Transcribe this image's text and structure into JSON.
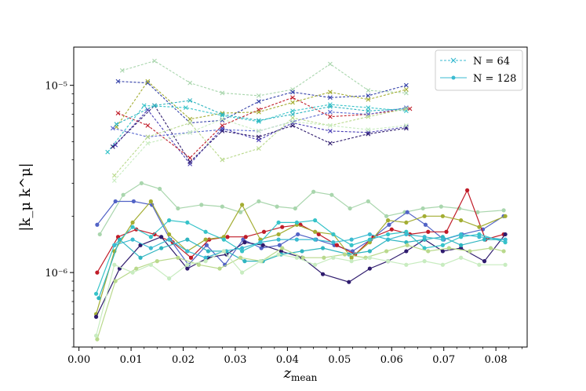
{
  "chart_data": {
    "type": "line",
    "xlabel": "z",
    "xlabel_sub": "mean",
    "ylabel": "|k_μ k^μ|",
    "xlim": [
      -0.001,
      0.086
    ],
    "ylim": [
      4e-07,
      1.6e-05
    ],
    "yscale": "log",
    "x_ticks": [
      0.0,
      0.01,
      0.02,
      0.03,
      0.04,
      0.05,
      0.06,
      0.07,
      0.08
    ],
    "x_tick_labels": [
      "0.00",
      "0.01",
      "0.02",
      "0.03",
      "0.04",
      "0.05",
      "0.06",
      "0.07",
      "0.08"
    ],
    "y_ticks": [
      1e-06,
      1e-05
    ],
    "y_tick_labels": [
      "10⁻⁶",
      "10⁻⁵"
    ],
    "legend": {
      "position": "top-right",
      "entries": [
        {
          "label": "N = 64",
          "color": "#3bbbd1",
          "linestyle": "dashed",
          "marker": "x"
        },
        {
          "label": "N = 128",
          "color": "#3bbbd1",
          "linestyle": "solid",
          "marker": "o"
        }
      ]
    },
    "series_n64": [
      {
        "color": "#a9d6ad",
        "x": [
          0.0083,
          0.0145,
          0.0213,
          0.0275,
          0.0345,
          0.041,
          0.0482,
          0.0555,
          0.0628
        ],
        "y": [
          1.2e-05,
          1.35e-05,
          1.03e-05,
          9.1e-06,
          8.8e-06,
          9.5e-06,
          1.3e-05,
          9.4e-06,
          9.1e-06
        ]
      },
      {
        "color": "#3340a8",
        "x": [
          0.0075,
          0.0132,
          0.0213,
          0.0275,
          0.0345,
          0.041,
          0.0482,
          0.0555,
          0.0628
        ],
        "y": [
          1.05e-05,
          1.03e-05,
          6.3e-06,
          6.5e-06,
          8.2e-06,
          9.2e-06,
          8.6e-06,
          8.8e-06,
          1e-05
        ]
      },
      {
        "color": "#4a3fb5",
        "x": [
          0.007,
          0.0132,
          0.0213,
          0.0275,
          0.0345,
          0.041,
          0.0482,
          0.0555,
          0.0628
        ],
        "y": [
          4.8e-06,
          7.4e-06,
          3.8e-06,
          5.9e-06,
          5.1e-06,
          6.3e-06,
          5.7e-06,
          5.6e-06,
          6e-06
        ]
      },
      {
        "color": "#c01c28",
        "x": [
          0.0075,
          0.0132,
          0.0213,
          0.0275,
          0.0345,
          0.041,
          0.0482,
          0.0555,
          0.0635
        ],
        "y": [
          7.1e-06,
          6.1e-06,
          4.1e-06,
          6.1e-06,
          7.4e-06,
          8.6e-06,
          6.8e-06,
          7e-06,
          7.5e-06
        ]
      },
      {
        "color": "#a3ad32",
        "x": [
          0.0072,
          0.0132,
          0.0213,
          0.0275,
          0.0345,
          0.041,
          0.0482,
          0.0555,
          0.0628
        ],
        "y": [
          6e-06,
          1.05e-05,
          6.6e-06,
          7.1e-06,
          7.2e-06,
          8.1e-06,
          9.2e-06,
          8.4e-06,
          9.5e-06
        ]
      },
      {
        "color": "#36c3c9",
        "x": [
          0.0055,
          0.0125,
          0.0205,
          0.0275,
          0.0345,
          0.041,
          0.0482,
          0.0555,
          0.0628
        ],
        "y": [
          4.4e-06,
          7.8e-06,
          7.6e-06,
          6.9e-06,
          6.4e-06,
          7.3e-06,
          7.9e-06,
          7.6e-06,
          7.3e-06
        ]
      },
      {
        "color": "#5b6bd0",
        "x": [
          0.0065,
          0.0132,
          0.0213,
          0.0275,
          0.0345,
          0.041,
          0.0482,
          0.0555,
          0.0628
        ],
        "y": [
          5.9e-06,
          5.3e-06,
          5.6e-06,
          5.8e-06,
          5.7e-06,
          6.4e-06,
          7.2e-06,
          7e-06,
          7.6e-06
        ]
      },
      {
        "color": "#2f1c6e",
        "x": [
          0.0065,
          0.0145,
          0.0213,
          0.0275,
          0.0345,
          0.041,
          0.0482,
          0.0555,
          0.0628
        ],
        "y": [
          4.7e-06,
          7.8e-06,
          3.9e-06,
          5.7e-06,
          5.3e-06,
          6.1e-06,
          4.9e-06,
          5.5e-06,
          5.9e-06
        ]
      },
      {
        "color": "#2fb5c0",
        "x": [
          0.0072,
          0.0145,
          0.0213,
          0.0275,
          0.0345,
          0.041,
          0.0482,
          0.0555,
          0.0628
        ],
        "y": [
          6.2e-06,
          7.8e-06,
          8.3e-06,
          7e-06,
          6.5e-06,
          7e-06,
          7.7e-06,
          7.3e-06,
          7.5e-06
        ]
      },
      {
        "color": "#b9d98c",
        "x": [
          0.0068,
          0.0132,
          0.0213,
          0.0275,
          0.0345,
          0.041,
          0.0482,
          0.0555,
          0.0628
        ],
        "y": [
          3.3e-06,
          5.3e-06,
          6.3e-06,
          4e-06,
          4.6e-06,
          6.7e-06,
          6.1e-06,
          6.8e-06,
          7.5e-06
        ]
      },
      {
        "color": "#c8ecc0",
        "x": [
          0.0068,
          0.0132,
          0.0213,
          0.0275,
          0.0345,
          0.041,
          0.0482,
          0.0555,
          0.0628
        ],
        "y": [
          3.1e-06,
          4.9e-06,
          5.6e-06,
          6.6e-06,
          5.7e-06,
          6.4e-06,
          6.1e-06,
          5.8e-06,
          6.1e-06
        ]
      }
    ],
    "series_n128": [
      {
        "color": "#a9d6ad",
        "x": [
          0.004,
          0.0085,
          0.012,
          0.0155,
          0.019,
          0.0235,
          0.0275,
          0.031,
          0.0345,
          0.038,
          0.0415,
          0.045,
          0.0485,
          0.052,
          0.0555,
          0.059,
          0.0625,
          0.066,
          0.0695,
          0.073,
          0.0765,
          0.0815
        ],
        "y": [
          1.6e-06,
          2.6e-06,
          3e-06,
          2.8e-06,
          2.2e-06,
          2.3e-06,
          2.25e-06,
          2.1e-06,
          2.4e-06,
          2.25e-06,
          2.2e-06,
          2.7e-06,
          2.6e-06,
          2.2e-06,
          2.4e-06,
          2e-06,
          2.1e-06,
          2.2e-06,
          2.25e-06,
          2.2e-06,
          2.1e-06,
          2.15e-06
        ]
      },
      {
        "color": "#5263c6",
        "x": [
          0.0035,
          0.007,
          0.0105,
          0.014,
          0.0175,
          0.021,
          0.0245,
          0.028,
          0.0315,
          0.035,
          0.0385,
          0.042,
          0.0455,
          0.049,
          0.0525,
          0.056,
          0.0595,
          0.063,
          0.0665,
          0.07,
          0.0735,
          0.0775,
          0.0815
        ],
        "y": [
          1.8e-06,
          2.4e-06,
          2.4e-06,
          2.3e-06,
          1.5e-06,
          1.1e-06,
          1.4e-06,
          1.1e-06,
          1.5e-06,
          1.35e-06,
          1.4e-06,
          1.6e-06,
          1.5e-06,
          1.4e-06,
          1.3e-06,
          1.5e-06,
          1.8e-06,
          2.1e-06,
          1.8e-06,
          1.5e-06,
          1.6e-06,
          1.7e-06,
          2e-06
        ]
      },
      {
        "color": "#c01c28",
        "x": [
          0.0035,
          0.0075,
          0.011,
          0.0145,
          0.018,
          0.0215,
          0.025,
          0.0285,
          0.032,
          0.0355,
          0.039,
          0.0425,
          0.046,
          0.0495,
          0.053,
          0.0565,
          0.06,
          0.0635,
          0.067,
          0.0705,
          0.0745,
          0.078,
          0.0815
        ],
        "y": [
          1e-06,
          1.55e-06,
          1.7e-06,
          1.6e-06,
          1.45e-06,
          1.2e-06,
          1.5e-06,
          1.55e-06,
          1.55e-06,
          1.65e-06,
          1.75e-06,
          1.8e-06,
          1.6e-06,
          1.4e-06,
          1.25e-06,
          1.55e-06,
          1.7e-06,
          1.6e-06,
          1.65e-06,
          1.65e-06,
          2.75e-06,
          1.5e-06,
          1.6e-06
        ]
      },
      {
        "color": "#a3ad32",
        "x": [
          0.0033,
          0.0068,
          0.0103,
          0.0138,
          0.0173,
          0.0208,
          0.0243,
          0.0278,
          0.0313,
          0.0348,
          0.0383,
          0.0418,
          0.0453,
          0.0488,
          0.0523,
          0.0558,
          0.0593,
          0.0628,
          0.0663,
          0.0698,
          0.0733,
          0.0768,
          0.0818
        ],
        "y": [
          6e-07,
          1.3e-06,
          1.85e-06,
          2.4e-06,
          1.6e-06,
          1.3e-06,
          1.5e-06,
          1.55e-06,
          2.3e-06,
          1.5e-06,
          1.6e-06,
          1.8e-06,
          1.65e-06,
          1.6e-06,
          1.2e-06,
          1.45e-06,
          1.9e-06,
          1.85e-06,
          2e-06,
          2e-06,
          1.9e-06,
          1.75e-06,
          2e-06
        ]
      },
      {
        "color": "#2f1c6e",
        "x": [
          0.0033,
          0.0078,
          0.0118,
          0.0158,
          0.0208,
          0.0248,
          0.0283,
          0.0318,
          0.0353,
          0.0388,
          0.0428,
          0.0468,
          0.0518,
          0.0558,
          0.0593,
          0.0628,
          0.0663,
          0.0698,
          0.0733,
          0.0778,
          0.0818
        ],
        "y": [
          5.8e-07,
          1.05e-06,
          1.4e-06,
          1.55e-06,
          1.05e-06,
          1.2e-06,
          1.25e-06,
          1.45e-06,
          1.4e-06,
          1.3e-06,
          1.2e-06,
          9.8e-07,
          8.9e-07,
          1.05e-06,
          1.15e-06,
          1.3e-06,
          1.5e-06,
          1.3e-06,
          1.35e-06,
          1.15e-06,
          1.6e-06
        ]
      },
      {
        "color": "#36c3c9",
        "x": [
          0.0033,
          0.0068,
          0.0103,
          0.0138,
          0.0173,
          0.0208,
          0.0243,
          0.0278,
          0.0313,
          0.0348,
          0.0383,
          0.0418,
          0.0453,
          0.0488,
          0.0523,
          0.0558,
          0.0593,
          0.0628,
          0.0663,
          0.0698,
          0.0733,
          0.0768,
          0.0818
        ],
        "y": [
          7.7e-07,
          1.4e-06,
          1.75e-06,
          1.55e-06,
          1.9e-06,
          1.85e-06,
          1.65e-06,
          1.5e-06,
          1.3e-06,
          1.45e-06,
          1.85e-06,
          1.85e-06,
          1.9e-06,
          1.6e-06,
          1.4e-06,
          1.5e-06,
          1.6e-06,
          1.65e-06,
          1.35e-06,
          1.4e-06,
          1.55e-06,
          1.6e-06,
          1.45e-06
        ]
      },
      {
        "color": "#2fb5c0",
        "x": [
          0.0038,
          0.0078,
          0.0118,
          0.0158,
          0.0208,
          0.0248,
          0.0283,
          0.0318,
          0.0353,
          0.0388,
          0.0428,
          0.0468,
          0.0518,
          0.0558,
          0.0593,
          0.0628,
          0.0663,
          0.0698,
          0.0733,
          0.0778,
          0.0818
        ],
        "y": [
          7.3e-07,
          1.5e-06,
          1.2e-06,
          1.35e-06,
          1.5e-06,
          1.3e-06,
          1.3e-06,
          1.15e-06,
          1.15e-06,
          1.25e-06,
          1.3e-06,
          1.35e-06,
          1.25e-06,
          1.3e-06,
          1.5e-06,
          1.45e-06,
          1.5e-06,
          1.55e-06,
          1.4e-06,
          1.5e-06,
          1.5e-06
        ]
      },
      {
        "color": "#3bbbd1",
        "x": [
          0.0068,
          0.0103,
          0.0138,
          0.0173,
          0.0208,
          0.0243,
          0.0278,
          0.0313,
          0.0348,
          0.0383,
          0.0418,
          0.0453,
          0.0488,
          0.0523,
          0.0558,
          0.0593,
          0.0628,
          0.0663,
          0.0698,
          0.0733,
          0.0768,
          0.0818
        ],
        "y": [
          1.4e-06,
          1.5e-06,
          1.35e-06,
          1.5e-06,
          1.3e-06,
          1.2e-06,
          1.3e-06,
          1.35e-06,
          1.45e-06,
          1.5e-06,
          1.5e-06,
          1.5e-06,
          1.45e-06,
          1.5e-06,
          1.6e-06,
          1.5e-06,
          1.6e-06,
          1.55e-06,
          1.5e-06,
          1.6e-06,
          1.55e-06,
          1.5e-06
        ]
      },
      {
        "color": "#b9d98c",
        "x": [
          0.0035,
          0.007,
          0.011,
          0.015,
          0.019,
          0.023,
          0.027,
          0.031,
          0.035,
          0.039,
          0.043,
          0.047,
          0.051,
          0.055,
          0.059,
          0.063,
          0.067,
          0.071,
          0.075,
          0.079,
          0.0815
        ],
        "y": [
          4.4e-07,
          9e-07,
          1.05e-06,
          1.15e-06,
          1.2e-06,
          1.1e-06,
          1.05e-06,
          1.2e-06,
          1.15e-06,
          1.35e-06,
          1.2e-06,
          1.2e-06,
          1.25e-06,
          1.2e-06,
          1.3e-06,
          1.4e-06,
          1.3e-06,
          1.35e-06,
          1.3e-06,
          1.35e-06,
          1.3e-06
        ]
      },
      {
        "color": "#c8ecc0",
        "x": [
          0.0033,
          0.0068,
          0.0103,
          0.0138,
          0.0173,
          0.0208,
          0.0243,
          0.0278,
          0.0313,
          0.0348,
          0.0383,
          0.0418,
          0.0453,
          0.0488,
          0.0523,
          0.0558,
          0.0593,
          0.0628,
          0.0663,
          0.0698,
          0.0733,
          0.0768,
          0.0818
        ],
        "y": [
          4.6e-07,
          1.1e-06,
          1e-06,
          1.1e-06,
          9.3e-07,
          1.1e-06,
          1.15e-06,
          1.3e-06,
          1e-06,
          1.15e-06,
          1.25e-06,
          1.2e-06,
          1.1e-06,
          1.2e-06,
          1.15e-06,
          1.2e-06,
          1.15e-06,
          1.1e-06,
          1.15e-06,
          1.1e-06,
          1.2e-06,
          1.1e-06,
          1.1e-06
        ]
      }
    ]
  }
}
